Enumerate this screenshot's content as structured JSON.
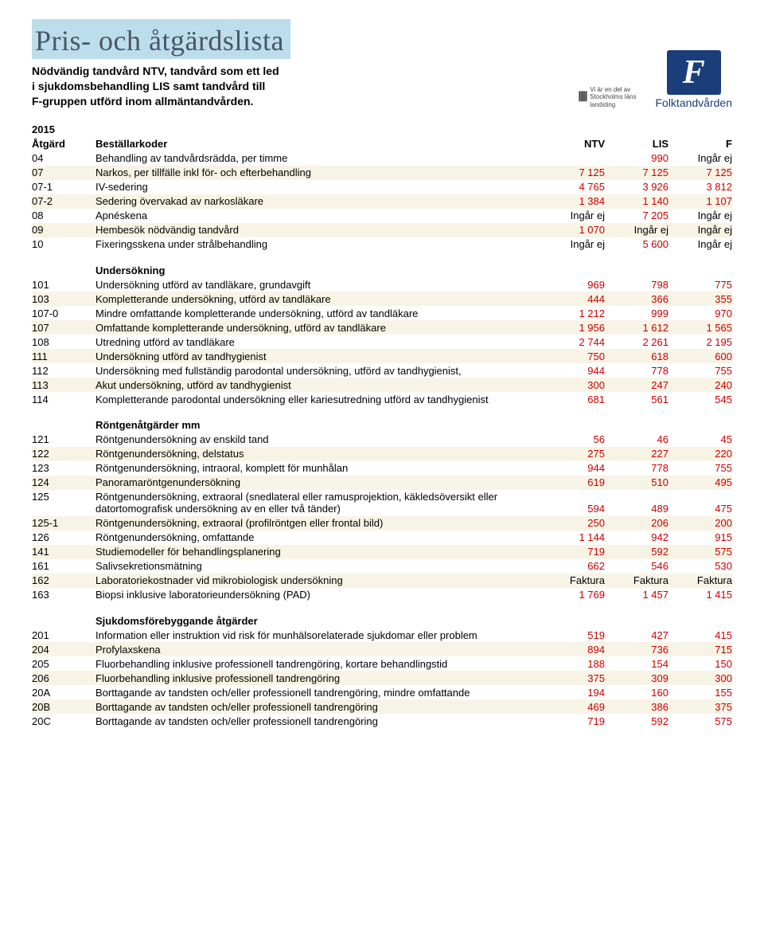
{
  "header": {
    "title": "Pris- och åtgärdslista",
    "subtitle_lines": [
      "Nödvändig tandvård NTV, tandvård som ett led",
      "i sjukdomsbehandling LIS samt tandvård till",
      "F-gruppen utförd inom allmäntandvården."
    ],
    "small_logo_text": "Vi är en del av\nStockholms läns\nlandsting",
    "logo_letter": "F",
    "logo_text": "Folktandvården"
  },
  "year": "2015",
  "columns": {
    "c1": "Åtgärd",
    "c2": "Beställarkoder",
    "c3": "NTV",
    "c4": "LIS",
    "c5": "F"
  },
  "colors": {
    "red": "#cc0000",
    "black": "#000000",
    "alt_bg": "#f7f4e6"
  },
  "sections": [
    {
      "title": null,
      "rows": [
        {
          "code": "04",
          "desc": "Behandling av tandvårdsrädda, per timme",
          "n1": "",
          "n2": "990",
          "n3": "Ingår ej",
          "alt": false
        },
        {
          "code": "07",
          "desc": "Narkos, per tillfälle inkl för- och efterbehandling",
          "n1": "7 125",
          "n2": "7 125",
          "n3": "7 125",
          "alt": true
        },
        {
          "code": "07-1",
          "desc": "IV-sedering",
          "n1": "4 765",
          "n2": "3 926",
          "n3": "3 812",
          "alt": false
        },
        {
          "code": "07-2",
          "desc": "Sedering övervakad av narkosläkare",
          "n1": "1 384",
          "n2": "1 140",
          "n3": "1 107",
          "alt": true
        },
        {
          "code": "08",
          "desc": "Apnéskena",
          "n1": "Ingår ej",
          "n2": "7 205",
          "n3": "Ingår ej",
          "alt": false
        },
        {
          "code": "09",
          "desc": "Hembesök nödvändig tandvård",
          "n1": "1 070",
          "n2": "Ingår ej",
          "n3": "Ingår ej",
          "alt": true
        },
        {
          "code": "10",
          "desc": "Fixeringsskena under strålbehandling",
          "n1": "Ingår ej",
          "n2": "5 600",
          "n3": "Ingår ej",
          "alt": false
        }
      ]
    },
    {
      "title": "Undersökning",
      "rows": [
        {
          "code": "101",
          "desc": "Undersökning utförd av tandläkare, grundavgift",
          "n1": "969",
          "n2": "798",
          "n3": "775",
          "alt": false
        },
        {
          "code": "103",
          "desc": "Kompletterande undersökning, utförd av tandläkare",
          "n1": "444",
          "n2": "366",
          "n3": "355",
          "alt": true
        },
        {
          "code": "107-0",
          "desc": "Mindre omfattande kompletterande undersökning, utförd av tandläkare",
          "n1": "1 212",
          "n2": "999",
          "n3": "970",
          "alt": false
        },
        {
          "code": "107",
          "desc": "Omfattande kompletterande undersökning, utförd av tandläkare",
          "n1": "1 956",
          "n2": "1 612",
          "n3": "1 565",
          "alt": true
        },
        {
          "code": "108",
          "desc": "Utredning utförd av tandläkare",
          "n1": "2 744",
          "n2": "2 261",
          "n3": "2 195",
          "alt": false
        },
        {
          "code": "111",
          "desc": "Undersökning utförd av tandhygienist",
          "n1": "750",
          "n2": "618",
          "n3": "600",
          "alt": true
        },
        {
          "code": "112",
          "desc": "Undersökning med fullständig parodontal undersökning, utförd av tandhygienist,",
          "n1": "944",
          "n2": "778",
          "n3": "755",
          "alt": false
        },
        {
          "code": "113",
          "desc": "Akut undersökning, utförd av tandhygienist",
          "n1": "300",
          "n2": "247",
          "n3": "240",
          "alt": true
        },
        {
          "code": "114",
          "desc": "Kompletterande parodontal undersökning eller kariesutredning utförd av tandhygienist",
          "n1": "681",
          "n2": "561",
          "n3": "545",
          "alt": false,
          "wrap": true
        }
      ]
    },
    {
      "title": "Röntgenåtgärder mm",
      "rows": [
        {
          "code": "121",
          "desc": "Röntgenundersökning av enskild tand",
          "n1": "56",
          "n2": "46",
          "n3": "45",
          "alt": false
        },
        {
          "code": "122",
          "desc": "Röntgenundersökning, delstatus",
          "n1": "275",
          "n2": "227",
          "n3": "220",
          "alt": true
        },
        {
          "code": "123",
          "desc": "Röntgenundersökning, intraoral, komplett för munhålan",
          "n1": "944",
          "n2": "778",
          "n3": "755",
          "alt": false
        },
        {
          "code": "124",
          "desc": "Panoramaröntgenundersökning",
          "n1": "619",
          "n2": "510",
          "n3": "495",
          "alt": true
        },
        {
          "code": "125",
          "desc": "Röntgenundersökning, extraoral (snedlateral eller ramusprojektion, käkledsöversikt eller datortomografisk undersökning av en eller två tänder)",
          "n1": "594",
          "n2": "489",
          "n3": "475",
          "alt": false,
          "wrap": true
        },
        {
          "code": "125-1",
          "desc": "Röntgenundersökning, extraoral (profilröntgen eller frontal bild)",
          "n1": "250",
          "n2": "206",
          "n3": "200",
          "alt": true
        },
        {
          "code": "126",
          "desc": "Röntgenundersökning, omfattande",
          "n1": "1 144",
          "n2": "942",
          "n3": "915",
          "alt": false
        },
        {
          "code": "141",
          "desc": "Studiemodeller för behandlingsplanering",
          "n1": "719",
          "n2": "592",
          "n3": "575",
          "alt": true
        },
        {
          "code": "161",
          "desc": "Salivsekretionsmätning",
          "n1": "662",
          "n2": "546",
          "n3": "530",
          "alt": false
        },
        {
          "code": "162",
          "desc": "Laboratoriekostnader vid mikrobiologisk undersökning",
          "n1": "Faktura",
          "n2": "Faktura",
          "n3": "Faktura",
          "alt": true
        },
        {
          "code": "163",
          "desc": "Biopsi inklusive laboratorieundersökning (PAD)",
          "n1": "1 769",
          "n2": "1 457",
          "n3": "1 415",
          "alt": false
        }
      ]
    },
    {
      "title": "Sjukdomsförebyggande åtgärder",
      "rows": [
        {
          "code": "201",
          "desc": "Information eller instruktion vid risk för munhälsorelaterade sjukdomar eller problem",
          "n1": "519",
          "n2": "427",
          "n3": "415",
          "alt": false,
          "wrap": true
        },
        {
          "code": "204",
          "desc": "Profylaxskena",
          "n1": "894",
          "n2": "736",
          "n3": "715",
          "alt": true
        },
        {
          "code": "205",
          "desc": "Fluorbehandling inklusive professionell tandrengöring, kortare behandlingstid",
          "n1": "188",
          "n2": "154",
          "n3": "150",
          "alt": false
        },
        {
          "code": "206",
          "desc": "Fluorbehandling inklusive professionell tandrengöring",
          "n1": "375",
          "n2": "309",
          "n3": "300",
          "alt": true
        },
        {
          "code": "20A",
          "desc": "Borttagande av tandsten och/eller professionell tandrengöring, mindre omfattande",
          "n1": "194",
          "n2": "160",
          "n3": "155",
          "alt": false
        },
        {
          "code": "20B",
          "desc": "Borttagande av tandsten och/eller professionell tandrengöring",
          "n1": "469",
          "n2": "386",
          "n3": "375",
          "alt": true
        },
        {
          "code": "20C",
          "desc": "Borttagande av tandsten och/eller professionell tandrengöring",
          "n1": "719",
          "n2": "592",
          "n3": "575",
          "alt": false
        }
      ]
    }
  ]
}
